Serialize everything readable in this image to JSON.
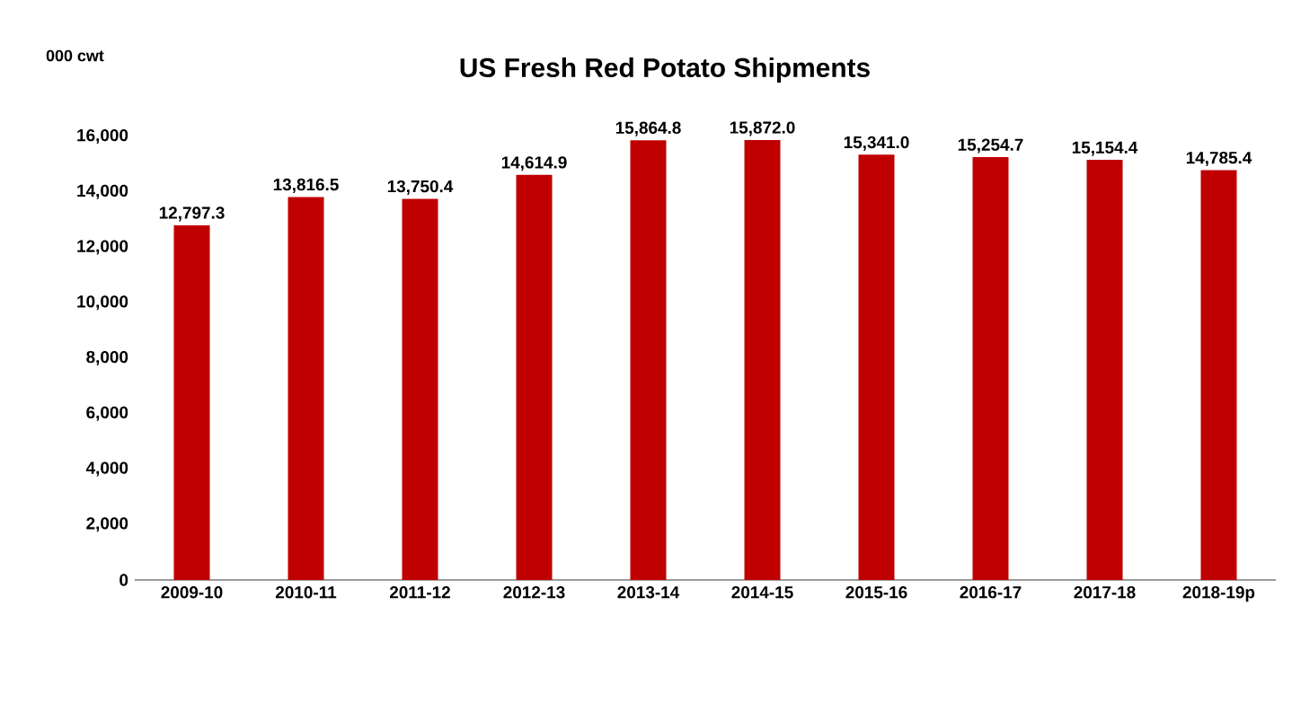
{
  "chart_data": {
    "type": "bar",
    "title": "US Fresh Red Potato Shipments",
    "ylabel": "000 cwt",
    "categories": [
      "2009-10",
      "2010-11",
      "2011-12",
      "2012-13",
      "2013-14",
      "2014-15",
      "2015-16",
      "2016-17",
      "2017-18",
      "2018-19p"
    ],
    "values": [
      12797.3,
      13816.5,
      13750.4,
      14614.9,
      15864.8,
      15872.0,
      15341.0,
      15254.7,
      15154.4,
      14785.4
    ],
    "value_labels": [
      "12,797.3",
      "13,816.5",
      "13,750.4",
      "14,614.9",
      "15,864.8",
      "15,872.0",
      "15,341.0",
      "15,254.7",
      "15,154.4",
      "14,785.4"
    ],
    "color": "#c00000",
    "ylim": [
      0,
      16000
    ],
    "yticks": [
      {
        "value": 0,
        "label": "0"
      },
      {
        "value": 2000,
        "label": "2,000"
      },
      {
        "value": 4000,
        "label": "4,000"
      },
      {
        "value": 6000,
        "label": "6,000"
      },
      {
        "value": 8000,
        "label": "8,000"
      },
      {
        "value": 10000,
        "label": "10,000"
      },
      {
        "value": 12000,
        "label": "12,000"
      },
      {
        "value": 14000,
        "label": "14,000"
      },
      {
        "value": 16000,
        "label": "16,000"
      }
    ]
  }
}
